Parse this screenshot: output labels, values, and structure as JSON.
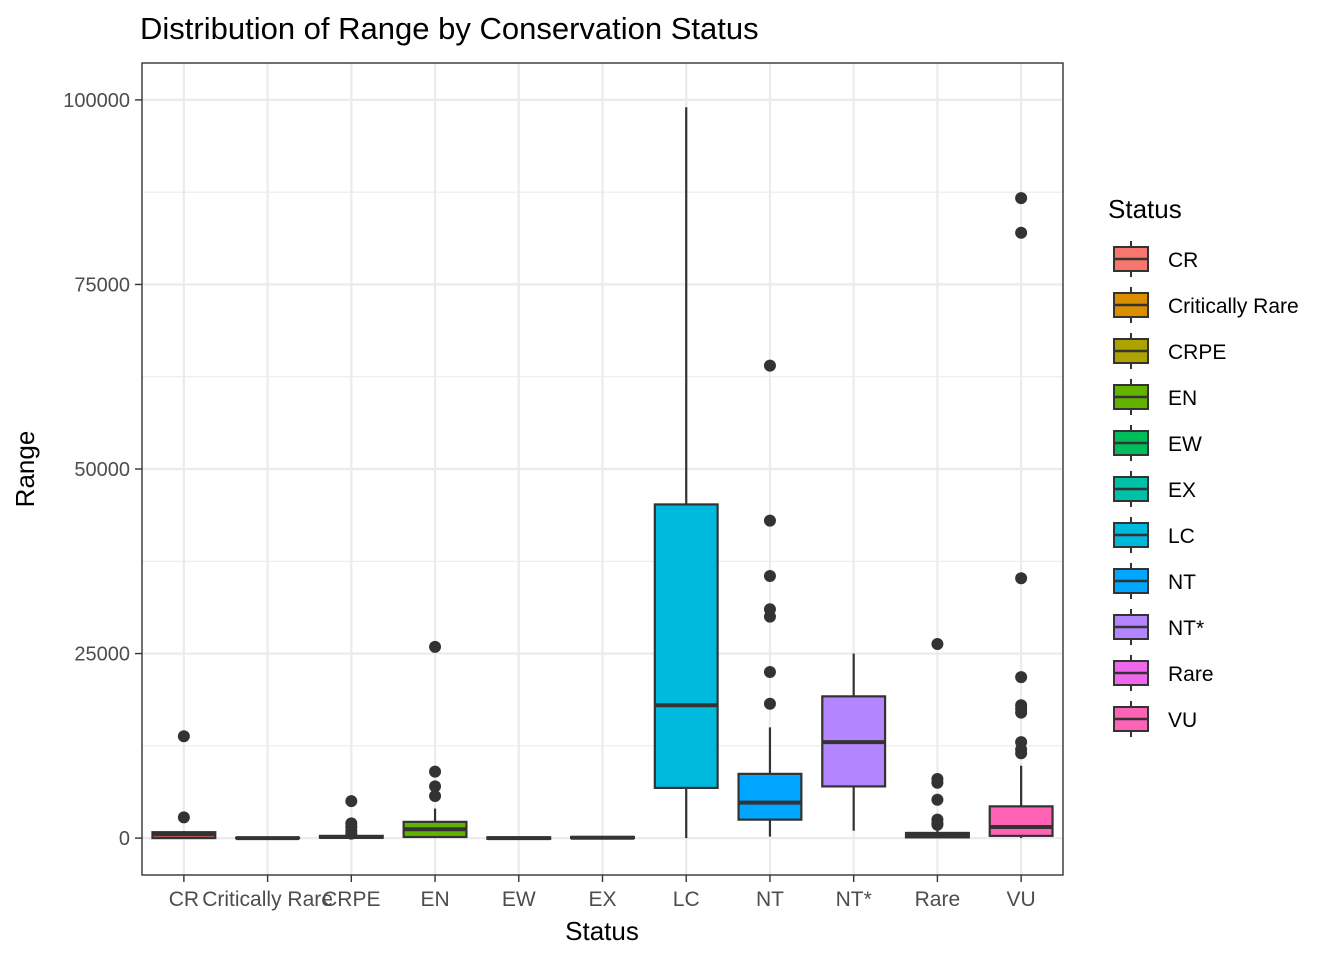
{
  "chart_data": {
    "type": "boxplot",
    "title": "Distribution of Range by Conservation Status",
    "xlabel": "Status",
    "ylabel": "Range",
    "ylim": [
      -5000,
      105000
    ],
    "yticks": [
      0,
      25000,
      50000,
      75000,
      100000
    ],
    "ytick_labels": [
      "0",
      "25000",
      "50000",
      "75000",
      "100000"
    ],
    "grid": true,
    "legend": {
      "title": "Status",
      "position": "right"
    },
    "categories": [
      "CR",
      "Critically Rare",
      "CRPE",
      "EN",
      "EW",
      "EX",
      "LC",
      "NT",
      "NT*",
      "Rare",
      "VU"
    ],
    "series": [
      {
        "name": "CR",
        "color": "#F8766D",
        "q1": 0,
        "median": 500,
        "q3": 800,
        "whisker_low": 0,
        "whisker_high": 800,
        "outliers": [
          13800,
          2800
        ]
      },
      {
        "name": "Critically Rare",
        "color": "#DB8E00",
        "q1": 0,
        "median": 0,
        "q3": 50,
        "whisker_low": 0,
        "whisker_high": 50,
        "outliers": []
      },
      {
        "name": "CRPE",
        "color": "#AEA200",
        "q1": 50,
        "median": 150,
        "q3": 300,
        "whisker_low": 0,
        "whisker_high": 400,
        "outliers": [
          5000,
          2000,
          1500,
          1000,
          600
        ]
      },
      {
        "name": "EN",
        "color": "#64B200",
        "q1": 150,
        "median": 1200,
        "q3": 2200,
        "whisker_low": 0,
        "whisker_high": 4000,
        "outliers": [
          25900,
          9000,
          7000,
          5700
        ]
      },
      {
        "name": "EW",
        "color": "#00BD5C",
        "q1": -100,
        "median": 0,
        "q3": 100,
        "whisker_low": -100,
        "whisker_high": 100,
        "outliers": []
      },
      {
        "name": "EX",
        "color": "#00C1A7",
        "q1": 0,
        "median": 50,
        "q3": 150,
        "whisker_low": 0,
        "whisker_high": 150,
        "outliers": []
      },
      {
        "name": "LC",
        "color": "#00BADE",
        "q1": 6800,
        "median": 18000,
        "q3": 45200,
        "whisker_low": 0,
        "whisker_high": 99000,
        "outliers": []
      },
      {
        "name": "NT",
        "color": "#00A6FF",
        "q1": 2500,
        "median": 4800,
        "q3": 8700,
        "whisker_low": 200,
        "whisker_high": 15000,
        "outliers": [
          64000,
          43000,
          35500,
          31000,
          30000,
          22500,
          18200
        ]
      },
      {
        "name": "NT*",
        "color": "#B385FF",
        "q1": 7000,
        "median": 13000,
        "q3": 19200,
        "whisker_low": 1000,
        "whisker_high": 25000,
        "outliers": []
      },
      {
        "name": "Rare",
        "color": "#EF67EB",
        "q1": 100,
        "median": 300,
        "q3": 700,
        "whisker_low": 0,
        "whisker_high": 1200,
        "outliers": [
          26300,
          8000,
          7500,
          5200,
          2500,
          2000,
          1800
        ]
      },
      {
        "name": "VU",
        "color": "#FF63B6",
        "q1": 300,
        "median": 1500,
        "q3": 4300,
        "whisker_low": 0,
        "whisker_high": 9800,
        "outliers": [
          86700,
          82000,
          35200,
          21800,
          18000,
          17500,
          17000,
          13000,
          12000,
          11500
        ]
      }
    ]
  }
}
